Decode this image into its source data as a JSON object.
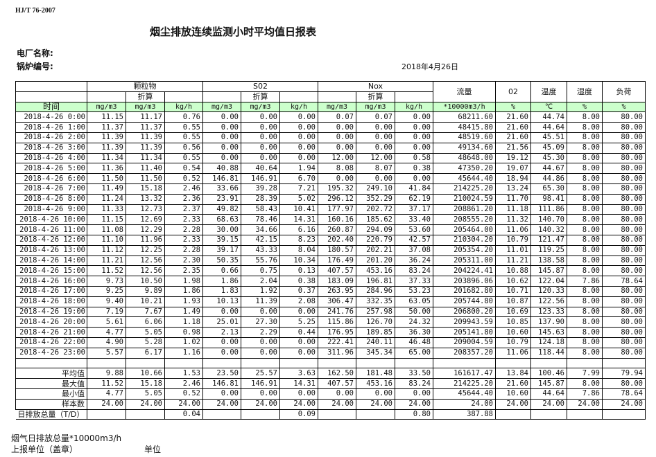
{
  "standard": "HJ/T  76-2007",
  "title": "烟尘排放连续监测小时平均值日报表",
  "plant_label": "电厂名称:",
  "boiler_label": "锅炉编号:",
  "date": "2018年4月26日",
  "colors": {
    "units_row_bg": "#ccffcc",
    "border": "#000000"
  },
  "header": {
    "groups": [
      "颗粒物",
      "S02",
      "Nox"
    ],
    "converted": "折算",
    "flow": "流量",
    "o2": "02",
    "temp": "温度",
    "humidity": "湿度",
    "load": "负荷",
    "time": "时间",
    "units": [
      "mg/m3",
      "mg/m3",
      "kg/h",
      "mg/m3",
      "mg/m3",
      "kg/h",
      "mg/m3",
      "mg/m3",
      "kg/h",
      "*10000m3/h",
      "%",
      "℃",
      "%",
      "%"
    ]
  },
  "rows": [
    [
      "2018-4-26 0:00",
      "11.15",
      "11.17",
      "0.76",
      "0.00",
      "0.00",
      "0.00",
      "0.07",
      "0.07",
      "0.00",
      "68211.60",
      "21.60",
      "44.74",
      "8.00",
      "80.00"
    ],
    [
      "2018-4-26 1:00",
      "11.37",
      "11.37",
      "0.55",
      "0.00",
      "0.00",
      "0.00",
      "0.00",
      "0.00",
      "0.00",
      "48415.80",
      "21.60",
      "44.64",
      "8.00",
      "80.00"
    ],
    [
      "2018-4-26 2:00",
      "11.39",
      "11.39",
      "0.55",
      "0.00",
      "0.00",
      "0.00",
      "0.00",
      "0.00",
      "0.00",
      "48519.60",
      "21.60",
      "45.51",
      "8.00",
      "80.00"
    ],
    [
      "2018-4-26 3:00",
      "11.39",
      "11.39",
      "0.56",
      "0.00",
      "0.00",
      "0.00",
      "0.00",
      "0.00",
      "0.00",
      "49134.60",
      "21.56",
      "45.09",
      "8.00",
      "80.00"
    ],
    [
      "2018-4-26 4:00",
      "11.34",
      "11.34",
      "0.55",
      "0.00",
      "0.00",
      "0.00",
      "12.00",
      "12.00",
      "0.58",
      "48648.00",
      "19.12",
      "45.30",
      "8.00",
      "80.00"
    ],
    [
      "2018-4-26 5:00",
      "11.36",
      "11.40",
      "0.54",
      "40.88",
      "40.64",
      "1.94",
      "8.08",
      "8.07",
      "0.38",
      "47350.20",
      "19.07",
      "44.67",
      "8.00",
      "80.00"
    ],
    [
      "2018-4-26 6:00",
      "11.50",
      "11.50",
      "0.52",
      "146.81",
      "146.91",
      "6.70",
      "0.00",
      "0.00",
      "0.00",
      "45644.40",
      "18.94",
      "44.86",
      "8.00",
      "80.00"
    ],
    [
      "2018-4-26 7:00",
      "11.49",
      "15.18",
      "2.46",
      "33.66",
      "39.28",
      "7.21",
      "195.32",
      "249.10",
      "41.84",
      "214225.20",
      "13.24",
      "65.30",
      "8.00",
      "80.00"
    ],
    [
      "2018-4-26 8:00",
      "11.24",
      "13.32",
      "2.36",
      "23.91",
      "28.39",
      "5.02",
      "296.12",
      "352.29",
      "62.19",
      "210024.59",
      "11.70",
      "98.41",
      "8.00",
      "80.00"
    ],
    [
      "2018-4-26 9:00",
      "11.33",
      "12.73",
      "2.37",
      "49.82",
      "58.43",
      "10.41",
      "177.97",
      "202.72",
      "37.17",
      "208861.20",
      "11.18",
      "111.86",
      "8.00",
      "80.00"
    ],
    [
      "2018-4-26 10:00",
      "11.15",
      "12.69",
      "2.33",
      "68.63",
      "78.46",
      "14.31",
      "160.16",
      "185.62",
      "33.40",
      "208555.20",
      "11.32",
      "140.70",
      "8.00",
      "80.00"
    ],
    [
      "2018-4-26 11:00",
      "11.08",
      "12.29",
      "2.28",
      "30.00",
      "34.66",
      "6.16",
      "260.87",
      "294.09",
      "53.60",
      "205464.00",
      "11.06",
      "140.32",
      "8.00",
      "80.00"
    ],
    [
      "2018-4-26 12:00",
      "11.10",
      "11.96",
      "2.33",
      "39.15",
      "42.15",
      "8.23",
      "202.40",
      "220.79",
      "42.57",
      "210304.20",
      "10.79",
      "121.47",
      "8.00",
      "80.00"
    ],
    [
      "2018-4-26 13:00",
      "11.12",
      "12.25",
      "2.28",
      "39.17",
      "43.33",
      "8.04",
      "180.57",
      "202.21",
      "37.08",
      "205354.20",
      "11.01",
      "119.25",
      "8.00",
      "80.00"
    ],
    [
      "2018-4-26 14:00",
      "11.21",
      "12.56",
      "2.30",
      "50.35",
      "55.76",
      "10.34",
      "176.49",
      "201.20",
      "36.24",
      "205311.00",
      "11.21",
      "138.58",
      "8.00",
      "80.00"
    ],
    [
      "2018-4-26 15:00",
      "11.52",
      "12.56",
      "2.35",
      "0.66",
      "0.75",
      "0.13",
      "407.57",
      "453.16",
      "83.24",
      "204224.41",
      "10.88",
      "145.87",
      "8.00",
      "80.00"
    ],
    [
      "2018-4-26 16:00",
      "9.73",
      "10.50",
      "1.98",
      "1.86",
      "2.04",
      "0.38",
      "183.09",
      "196.81",
      "37.33",
      "203896.06",
      "10.62",
      "122.04",
      "7.86",
      "78.64"
    ],
    [
      "2018-4-26 17:00",
      "9.25",
      "9.89",
      "1.86",
      "1.83",
      "1.92",
      "0.37",
      "263.95",
      "284.96",
      "53.23",
      "201682.80",
      "10.71",
      "120.33",
      "8.00",
      "80.00"
    ],
    [
      "2018-4-26 18:00",
      "9.40",
      "10.21",
      "1.93",
      "10.13",
      "11.39",
      "2.08",
      "306.47",
      "332.35",
      "63.05",
      "205744.80",
      "10.87",
      "122.56",
      "8.00",
      "80.00"
    ],
    [
      "2018-4-26 19:00",
      "7.19",
      "7.67",
      "1.49",
      "0.00",
      "0.00",
      "0.00",
      "241.76",
      "257.98",
      "50.00",
      "206800.20",
      "10.69",
      "123.33",
      "8.00",
      "80.00"
    ],
    [
      "2018-4-26 20:00",
      "5.61",
      "6.06",
      "1.18",
      "25.01",
      "27.30",
      "5.25",
      "115.86",
      "126.70",
      "24.32",
      "209943.59",
      "10.85",
      "137.90",
      "8.00",
      "80.00"
    ],
    [
      "2018-4-26 21:00",
      "4.77",
      "5.05",
      "0.98",
      "2.13",
      "2.29",
      "0.44",
      "176.95",
      "189.85",
      "36.30",
      "205141.80",
      "10.60",
      "145.63",
      "8.00",
      "80.00"
    ],
    [
      "2018-4-26 22:00",
      "4.90",
      "5.28",
      "1.02",
      "0.00",
      "0.00",
      "0.00",
      "222.41",
      "240.11",
      "46.48",
      "209004.59",
      "10.79",
      "124.18",
      "8.00",
      "80.00"
    ],
    [
      "2018-4-26 23:00",
      "5.57",
      "6.17",
      "1.16",
      "0.00",
      "0.00",
      "0.00",
      "311.96",
      "345.34",
      "65.00",
      "208357.20",
      "11.06",
      "118.44",
      "8.00",
      "80.00"
    ]
  ],
  "stats": [
    [
      "平均值",
      "9.88",
      "10.66",
      "1.53",
      "23.50",
      "25.57",
      "3.63",
      "162.50",
      "181.48",
      "33.50",
      "161617.47",
      "13.84",
      "100.46",
      "7.99",
      "79.94"
    ],
    [
      "最大值",
      "11.52",
      "15.18",
      "2.46",
      "146.81",
      "146.91",
      "14.31",
      "407.57",
      "453.16",
      "83.24",
      "214225.20",
      "21.60",
      "145.87",
      "8.00",
      "80.00"
    ],
    [
      "最小值",
      "4.77",
      "5.05",
      "0.52",
      "0.00",
      "0.00",
      "0.00",
      "0.00",
      "0.00",
      "0.00",
      "45644.40",
      "10.60",
      "44.64",
      "7.86",
      "78.64"
    ],
    [
      "样本数",
      "24.00",
      "24.00",
      "24.00",
      "24.00",
      "24.00",
      "24.00",
      "24.00",
      "24.00",
      "24.00",
      "24.00",
      "24.00",
      "24.00",
      "24.00",
      "24.00"
    ]
  ],
  "daily_total": [
    "日排放总量（T/D）",
    "",
    "",
    "0.04",
    "",
    "",
    "0.09",
    "",
    "",
    "0.80",
    "387.88",
    "",
    "",
    "",
    ""
  ],
  "footer": {
    "flue_gas_total": "烟气日排放总量*10000m3/h",
    "reporting_unit": "上报单位（盖章）",
    "unit": "单位"
  }
}
